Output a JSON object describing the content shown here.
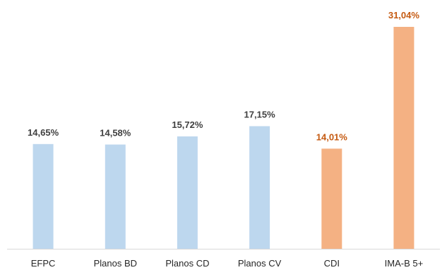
{
  "chart_data": {
    "type": "bar",
    "categories": [
      "EFPC",
      "Planos BD",
      "Planos CD",
      "Planos CV",
      "CDI",
      "IMA-B 5+"
    ],
    "values": [
      14.65,
      14.58,
      15.72,
      17.15,
      14.01,
      31.04
    ],
    "data_labels": [
      "14,65%",
      "14,58%",
      "15,72%",
      "17,15%",
      "14,01%",
      "31,04%"
    ],
    "highlighted": [
      false,
      false,
      false,
      false,
      true,
      true
    ],
    "title": "",
    "xlabel": "",
    "ylabel": "",
    "ylim": [
      0,
      32
    ],
    "grid": false,
    "legend": "none",
    "colors": {
      "bar_default": "#BDD7EE",
      "bar_highlight": "#F4B183",
      "label_default": "#404040",
      "label_highlight": "#C55A11",
      "axis": "#D9D9D9",
      "tick_text": "#262626"
    }
  }
}
